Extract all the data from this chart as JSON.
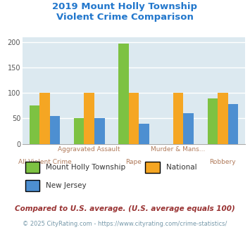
{
  "title_line1": "2019 Mount Holly Township",
  "title_line2": "Violent Crime Comparison",
  "categories": [
    "All Violent Crime",
    "Aggravated Assault",
    "Rape",
    "Murder & Mans...",
    "Robbery"
  ],
  "x_labels_top": [
    "",
    "Aggravated Assault",
    "",
    "Murder & Mans...",
    ""
  ],
  "x_labels_bottom": [
    "All Violent Crime",
    "",
    "Rape",
    "",
    "Robbery"
  ],
  "series": {
    "Mount Holly Township": [
      75,
      50,
      197,
      0,
      90
    ],
    "National": [
      100,
      100,
      100,
      100,
      100
    ],
    "New Jersey": [
      55,
      50,
      40,
      60,
      78
    ]
  },
  "colors": {
    "Mount Holly Township": "#7dc242",
    "National": "#f5a623",
    "New Jersey": "#4d8fd1"
  },
  "ylim": [
    0,
    210
  ],
  "yticks": [
    0,
    50,
    100,
    150,
    200
  ],
  "bg_color": "#dce9f0",
  "grid_color": "#ffffff",
  "title_color": "#2277cc",
  "xlabel_color": "#b07a5a",
  "footnote1": "Compared to U.S. average. (U.S. average equals 100)",
  "footnote2": "© 2025 CityRating.com - https://www.cityrating.com/crime-statistics/",
  "footnote1_color": "#993333",
  "footnote2_color": "#7799aa",
  "legend_text_color": "#333333"
}
